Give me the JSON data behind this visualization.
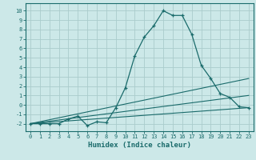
{
  "title": "",
  "xlabel": "Humidex (Indice chaleur)",
  "bg_color": "#cce8e8",
  "grid_color": "#aacccc",
  "line_color": "#1a6b6b",
  "spine_color": "#1a6b6b",
  "xlim": [
    -0.5,
    23.5
  ],
  "ylim": [
    -2.8,
    10.8
  ],
  "xticks": [
    0,
    1,
    2,
    3,
    4,
    5,
    6,
    7,
    8,
    9,
    10,
    11,
    12,
    13,
    14,
    15,
    16,
    17,
    18,
    19,
    20,
    21,
    22,
    23
  ],
  "yticks": [
    -2,
    -1,
    0,
    1,
    2,
    3,
    4,
    5,
    6,
    7,
    8,
    9,
    10
  ],
  "main_x": [
    0,
    1,
    2,
    3,
    4,
    5,
    6,
    7,
    8,
    9,
    10,
    11,
    12,
    13,
    14,
    15,
    16,
    17,
    18,
    19,
    20,
    21,
    22,
    23
  ],
  "main_y": [
    -2,
    -2,
    -2,
    -2,
    -1.5,
    -1.2,
    -2.2,
    -1.8,
    -1.9,
    -0.3,
    1.8,
    5.2,
    7.2,
    8.4,
    10.0,
    9.5,
    9.5,
    7.5,
    4.2,
    2.8,
    1.2,
    0.8,
    -0.2,
    -0.3
  ],
  "line1_x": [
    0,
    23
  ],
  "line1_y": [
    -2.0,
    2.8
  ],
  "line2_x": [
    0,
    23
  ],
  "line2_y": [
    -2.0,
    1.0
  ],
  "line3_x": [
    0,
    23
  ],
  "line3_y": [
    -2.0,
    -0.3
  ]
}
